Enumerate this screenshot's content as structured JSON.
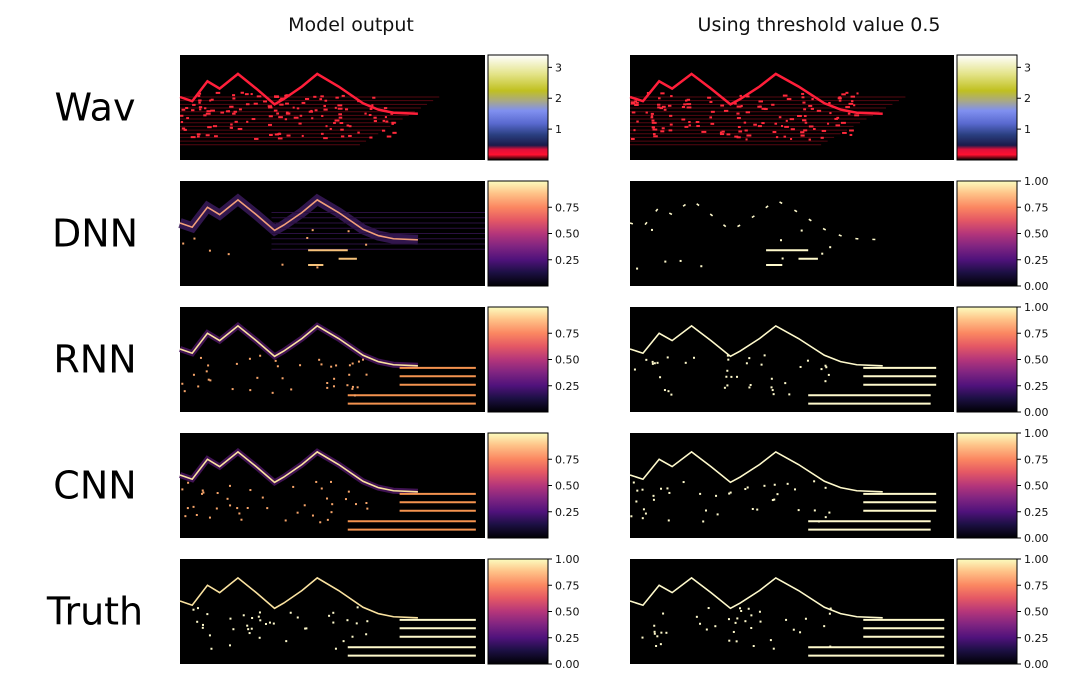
{
  "columns": [
    {
      "title": "Model output"
    },
    {
      "title": "Using threshold value 0.5"
    }
  ],
  "rows": [
    {
      "label": "Wav",
      "colormap": "gist_stern",
      "left": {
        "ticks": [
          "1",
          "2",
          "3"
        ],
        "tick_values": [
          1,
          2,
          3
        ],
        "range": [
          0,
          3.4
        ]
      },
      "right": {
        "ticks": [
          "1",
          "2",
          "3"
        ],
        "tick_values": [
          1,
          2,
          3
        ],
        "range": [
          0,
          3.4
        ]
      }
    },
    {
      "label": "DNN",
      "colormap": "magma",
      "left": {
        "ticks": [
          "0.25",
          "0.50",
          "0.75"
        ],
        "tick_values": [
          0.25,
          0.5,
          0.75
        ],
        "range": [
          0,
          1
        ]
      },
      "right": {
        "ticks": [
          "0.00",
          "0.25",
          "0.50",
          "0.75",
          "1.00"
        ],
        "tick_values": [
          0,
          0.25,
          0.5,
          0.75,
          1
        ],
        "range": [
          0,
          1
        ]
      }
    },
    {
      "label": "RNN",
      "colormap": "magma",
      "left": {
        "ticks": [
          "0.25",
          "0.50",
          "0.75"
        ],
        "tick_values": [
          0.25,
          0.5,
          0.75
        ],
        "range": [
          0,
          1
        ]
      },
      "right": {
        "ticks": [
          "0.00",
          "0.25",
          "0.50",
          "0.75",
          "1.00"
        ],
        "tick_values": [
          0,
          0.25,
          0.5,
          0.75,
          1
        ],
        "range": [
          0,
          1
        ]
      }
    },
    {
      "label": "CNN",
      "colormap": "magma",
      "left": {
        "ticks": [
          "0.25",
          "0.50",
          "0.75"
        ],
        "tick_values": [
          0.25,
          0.5,
          0.75
        ],
        "range": [
          0,
          1
        ]
      },
      "right": {
        "ticks": [
          "0.00",
          "0.25",
          "0.50",
          "0.75",
          "1.00"
        ],
        "tick_values": [
          0,
          0.25,
          0.5,
          0.75,
          1
        ],
        "range": [
          0,
          1
        ]
      }
    },
    {
      "label": "Truth",
      "colormap": "magma",
      "left": {
        "ticks": [
          "0.00",
          "0.25",
          "0.50",
          "0.75",
          "1.00"
        ],
        "tick_values": [
          0,
          0.25,
          0.5,
          0.75,
          1
        ],
        "range": [
          0,
          1
        ]
      },
      "right": {
        "ticks": [
          "0.00",
          "0.25",
          "0.50",
          "0.75",
          "1.00"
        ],
        "tick_values": [
          0,
          0.25,
          0.5,
          0.75,
          1
        ],
        "range": [
          0,
          1
        ]
      }
    }
  ],
  "chart_data": {
    "type": "heatmap",
    "title": "",
    "column_titles": [
      "Model output",
      "Using threshold value 0.5"
    ],
    "row_labels": [
      "Wav",
      "DNN",
      "RNN",
      "CNN",
      "Truth"
    ],
    "threshold": 0.5,
    "colormaps": {
      "Wav": "gist_stern",
      "DNN": "magma",
      "RNN": "magma",
      "CNN": "magma",
      "Truth": "magma"
    }
  }
}
